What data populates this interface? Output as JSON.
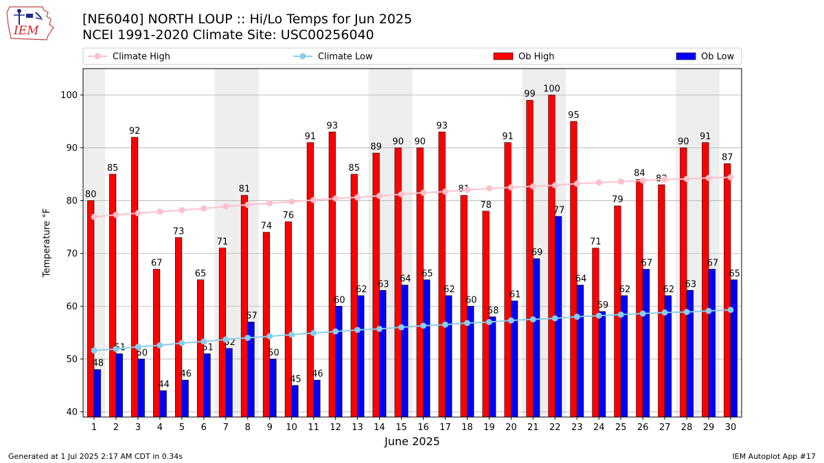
{
  "title": "[NE6040] NORTH LOUP :: Hi/Lo Temps for Jun 2025",
  "subtitle": "NCEI 1991-2020 Climate Site: USC00256040",
  "logo_text": "IEM",
  "footer_left": "Generated at 1 Jul 2025 2:17 AM CDT in 0.34s",
  "footer_right": "IEM Autoplot App #17",
  "colors": {
    "ob_high": "#ff0000",
    "ob_low": "#0000ff",
    "climate_high": "#ffc0cb",
    "climate_low": "#87ceeb",
    "weekend_shade": "#eeeeee",
    "grid": "#b0b0b0"
  },
  "chart_data": {
    "type": "bar",
    "xlabel": "June 2025",
    "ylabel": "Temperature °F",
    "ylim": [
      39,
      105
    ],
    "yticks": [
      40,
      50,
      60,
      70,
      80,
      90,
      100
    ],
    "grid": "horizontal",
    "legend_position": "top",
    "categories": [
      "1",
      "2",
      "3",
      "4",
      "5",
      "6",
      "7",
      "8",
      "9",
      "10",
      "11",
      "12",
      "13",
      "14",
      "15",
      "16",
      "17",
      "18",
      "19",
      "20",
      "21",
      "22",
      "23",
      "24",
      "25",
      "26",
      "27",
      "28",
      "29",
      "30"
    ],
    "shaded_days": [
      1,
      7,
      8,
      14,
      15,
      21,
      22,
      28,
      29
    ],
    "series": [
      {
        "name": "Ob High",
        "kind": "bar",
        "values": [
          80,
          85,
          92,
          67,
          73,
          65,
          71,
          81,
          74,
          76,
          91,
          93,
          85,
          89,
          90,
          90,
          93,
          81,
          78,
          91,
          99,
          100,
          95,
          71,
          79,
          84,
          83,
          90,
          91,
          87
        ]
      },
      {
        "name": "Ob Low",
        "kind": "bar",
        "values": [
          48,
          51,
          50,
          44,
          46,
          51,
          52,
          57,
          50,
          45,
          46,
          60,
          62,
          63,
          64,
          65,
          62,
          60,
          58,
          61,
          69,
          77,
          64,
          59,
          62,
          67,
          62,
          63,
          67,
          65
        ]
      },
      {
        "name": "Climate High",
        "kind": "line",
        "values": [
          76.9,
          77.3,
          77.6,
          77.9,
          78.2,
          78.5,
          78.9,
          79.2,
          79.5,
          79.8,
          80.1,
          80.4,
          80.6,
          80.9,
          81.2,
          81.5,
          81.7,
          82.0,
          82.3,
          82.5,
          82.7,
          82.9,
          83.2,
          83.4,
          83.6,
          83.8,
          84.0,
          84.1,
          84.3,
          84.4
        ]
      },
      {
        "name": "Climate Low",
        "kind": "line",
        "values": [
          51.6,
          51.9,
          52.3,
          52.6,
          53.0,
          53.3,
          53.7,
          54.0,
          54.3,
          54.6,
          54.9,
          55.2,
          55.5,
          55.7,
          56.0,
          56.3,
          56.5,
          56.8,
          57.0,
          57.3,
          57.5,
          57.7,
          58.0,
          58.2,
          58.4,
          58.6,
          58.8,
          58.9,
          59.1,
          59.3
        ]
      }
    ]
  }
}
